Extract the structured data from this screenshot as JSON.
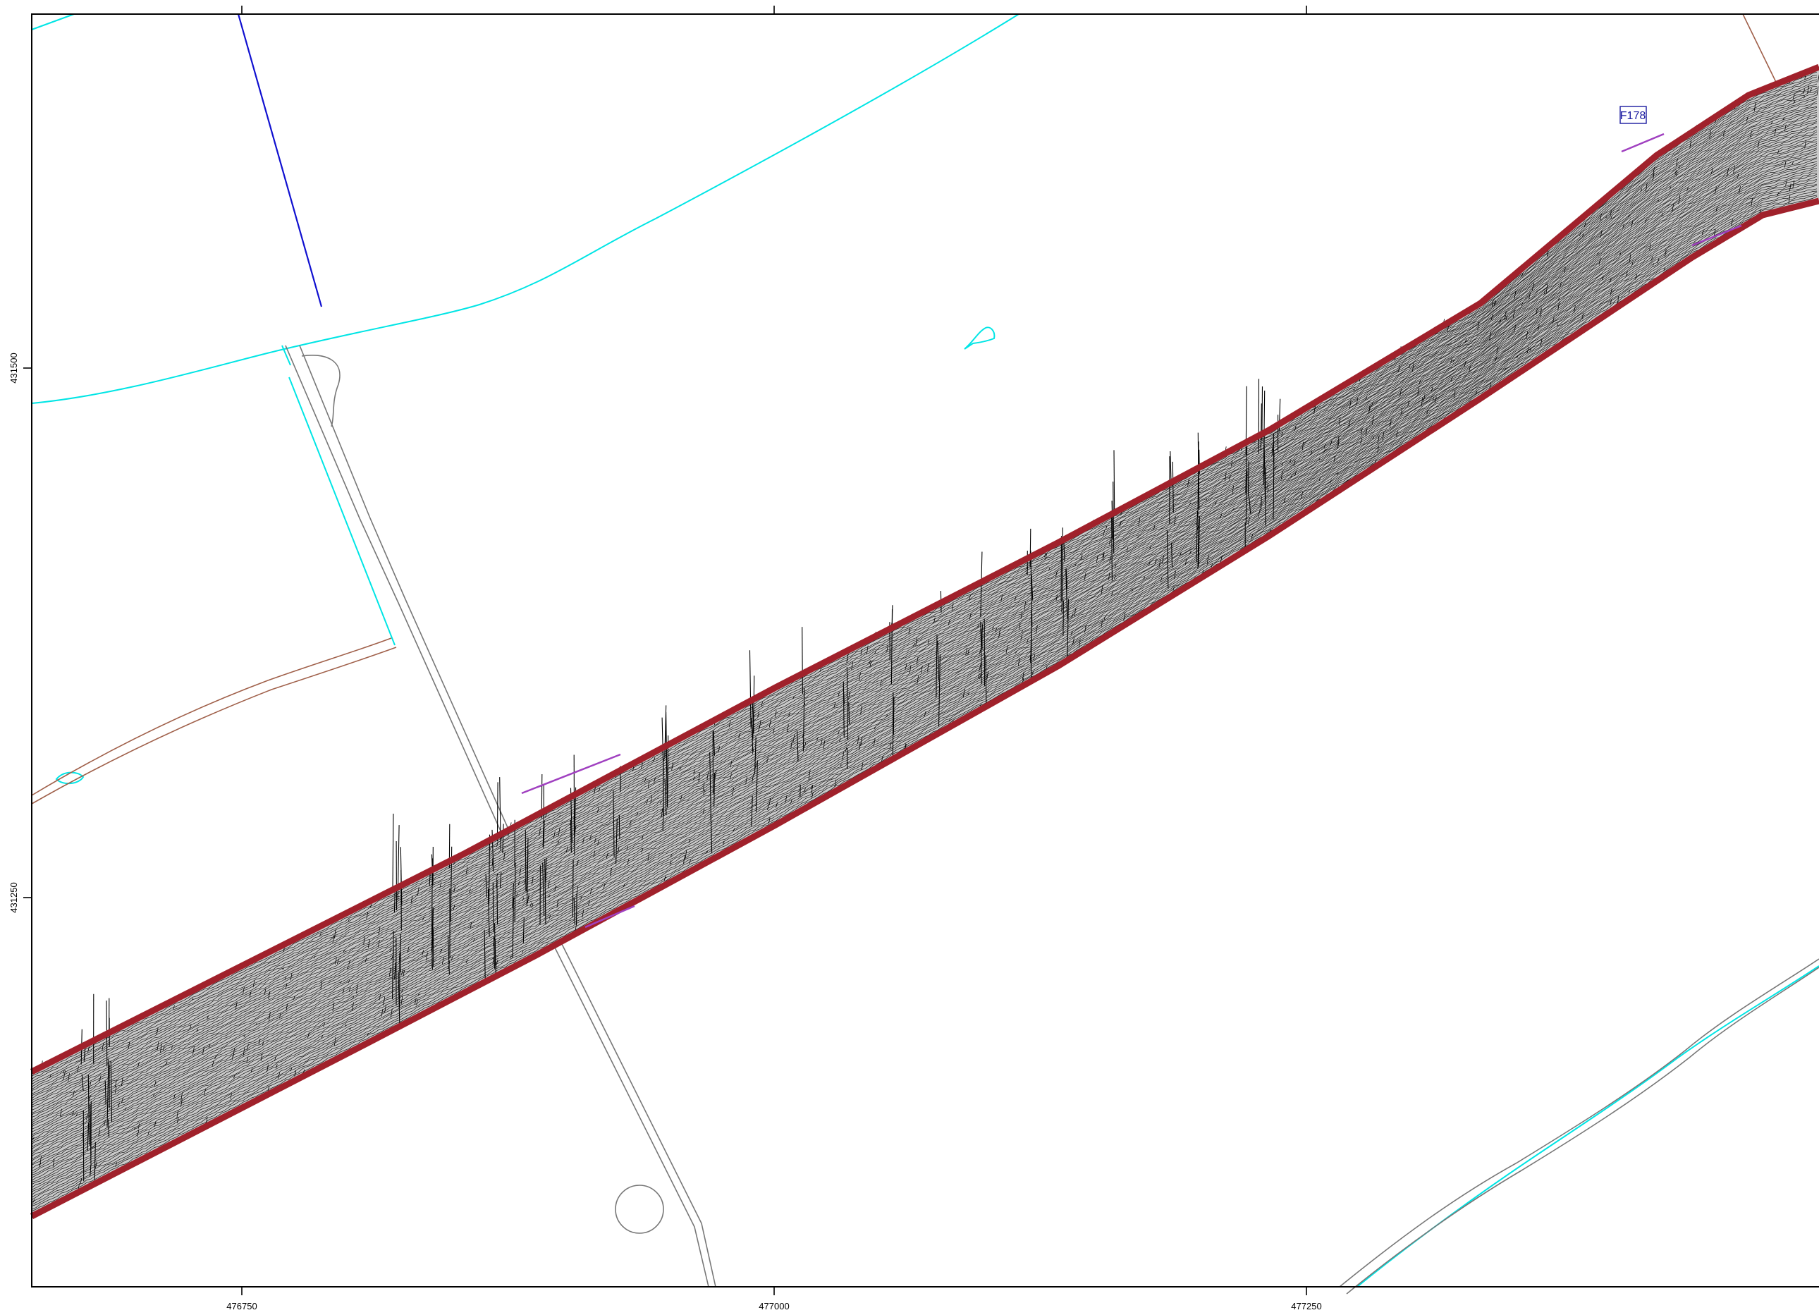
{
  "map": {
    "easting_labels": [
      "476750",
      "477000",
      "477250"
    ],
    "northing_labels": [
      "431500",
      "431250"
    ],
    "grid_tag": "F178",
    "colors": {
      "frame": "#000000",
      "survey_outline": "#a0212b",
      "trace": "#000000",
      "water": "#00e5e5",
      "field_boundary": "#a0604a",
      "track": "#777777",
      "drain": "#1010d0",
      "tag_border": "#1a1aa0"
    }
  }
}
